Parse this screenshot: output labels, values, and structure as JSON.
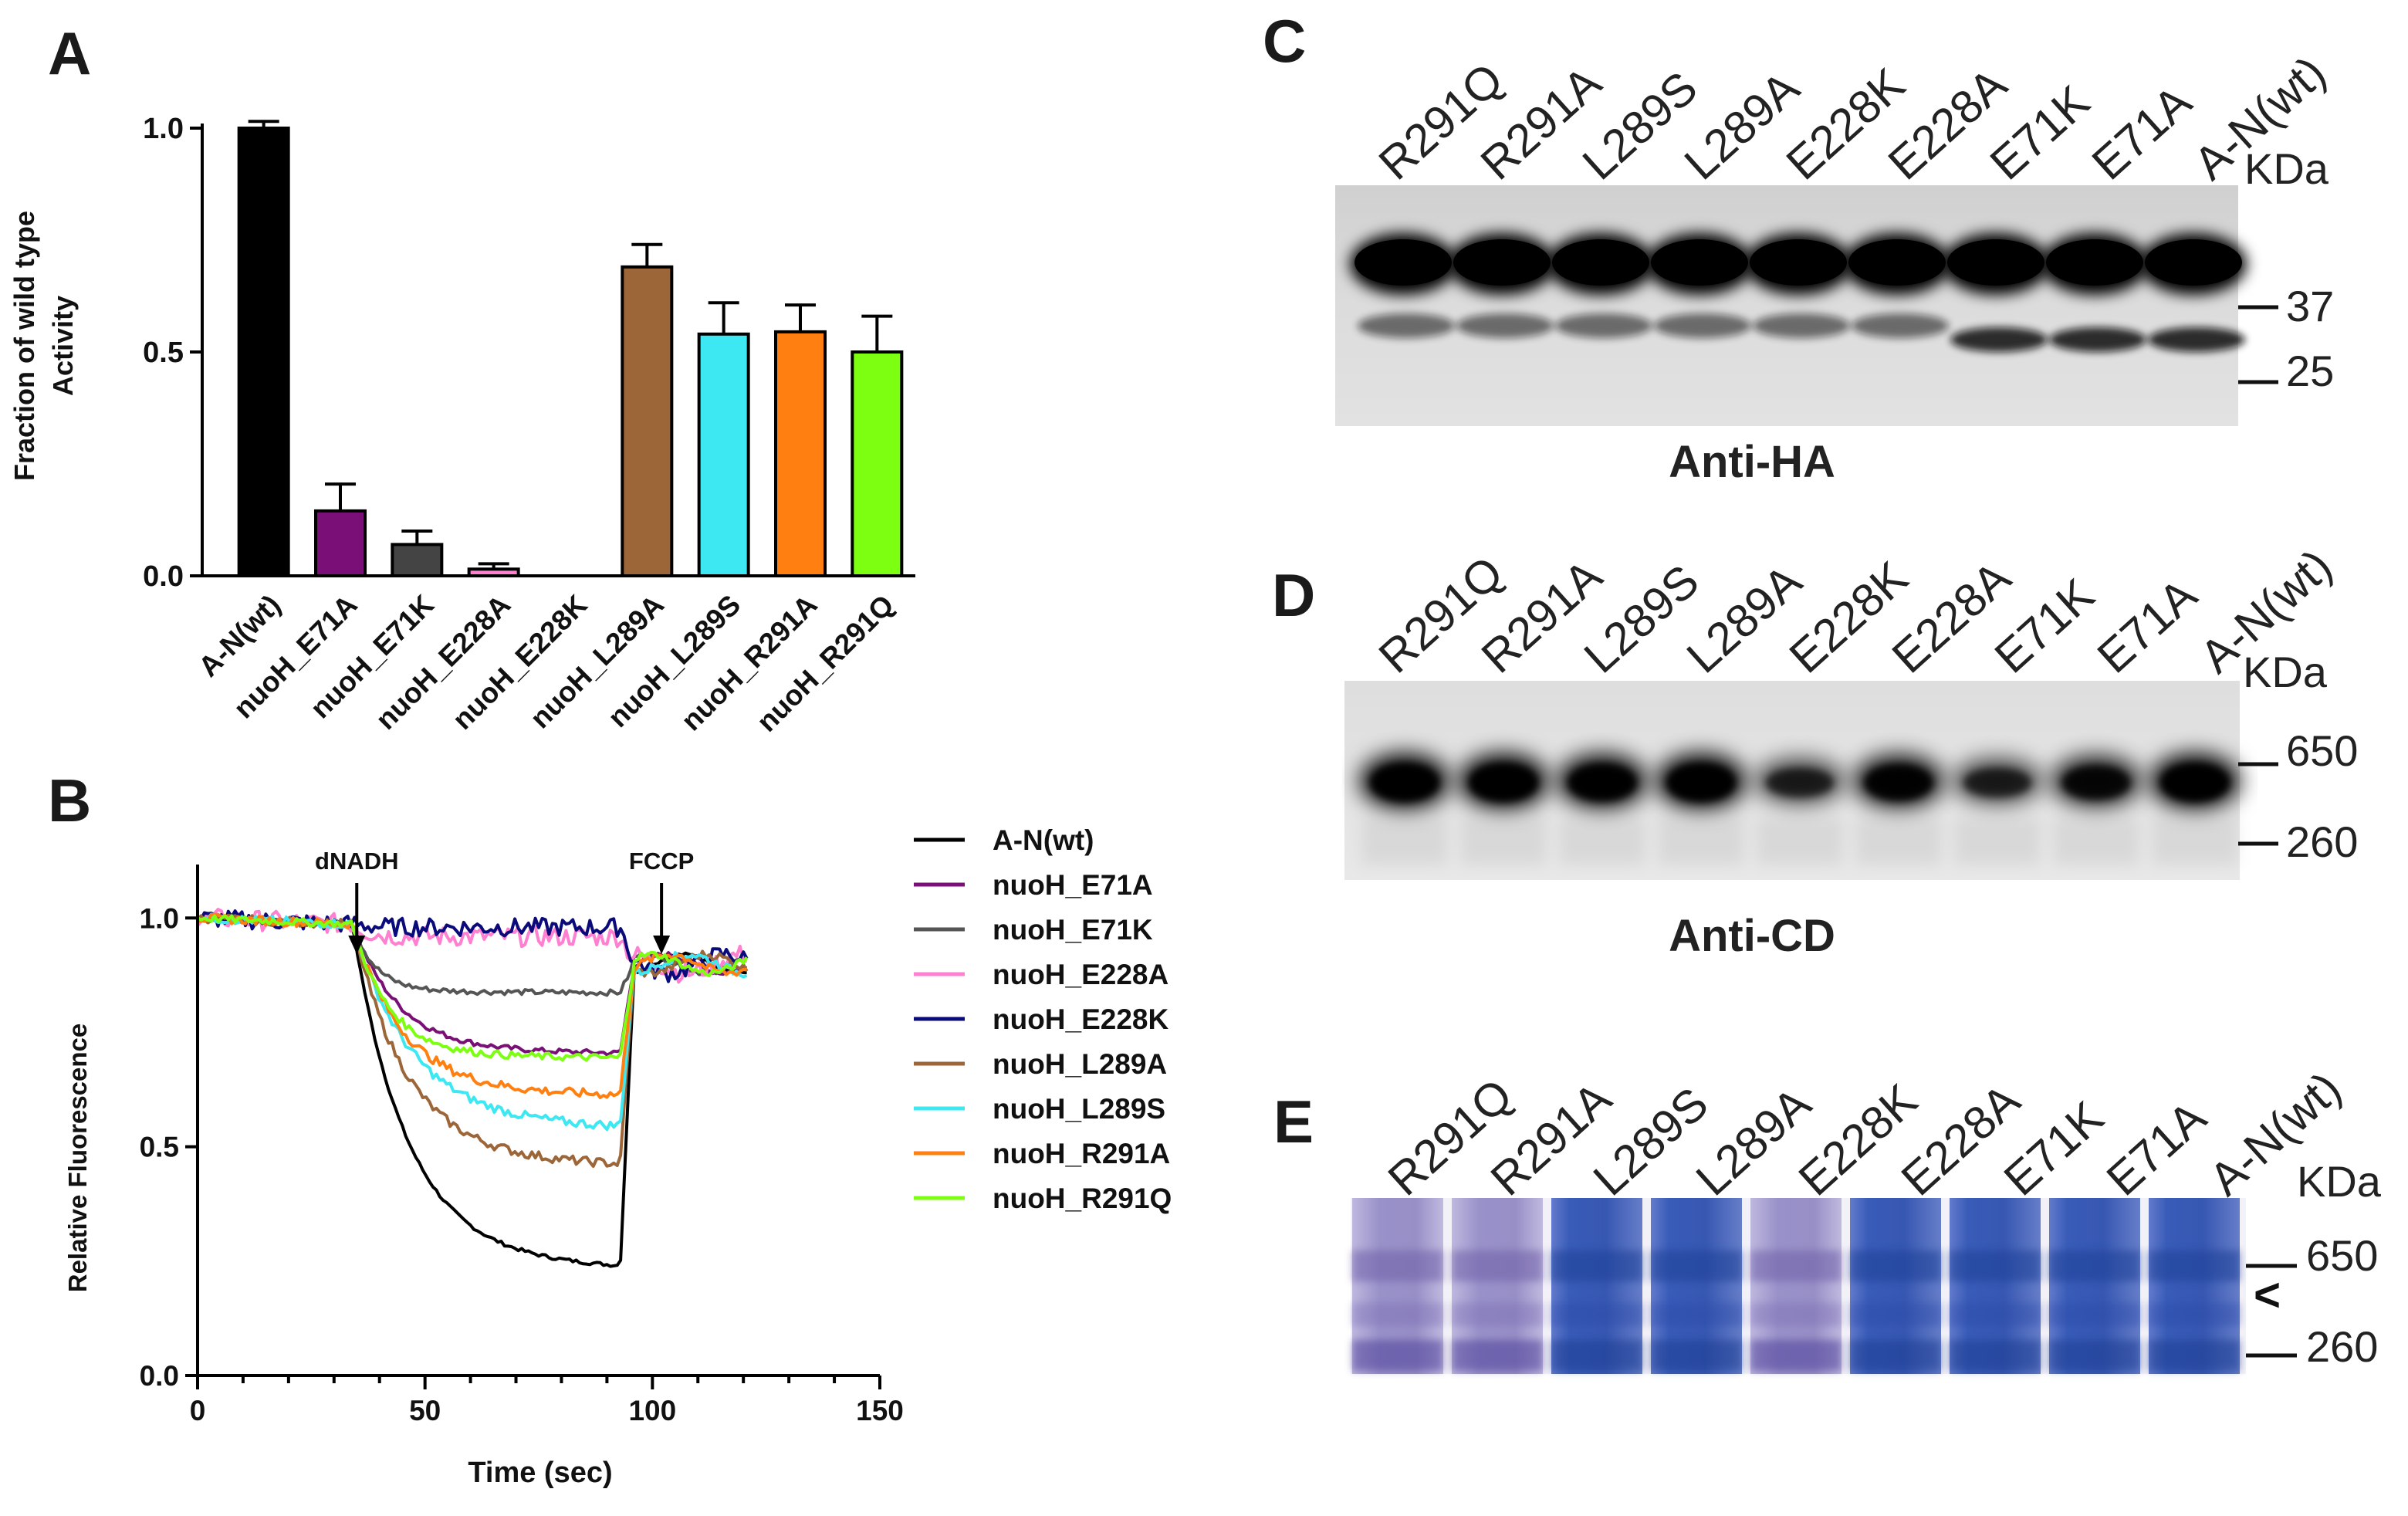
{
  "panels": {
    "a": "A",
    "b": "B",
    "c": "C",
    "d": "D",
    "e": "E"
  },
  "chart_data": [
    {
      "type": "bar",
      "panel": "A",
      "ylabel_line1": "Fraction of wild type",
      "ylabel_line2": "Activity",
      "ylim": [
        0,
        1.0
      ],
      "yticks": [
        "0.0",
        "0.5",
        "1.0"
      ],
      "categories": [
        "A-N(wt)",
        "nuoH_E71A",
        "nuoH_E71K",
        "nuoH_E228A",
        "nuoH_E228K",
        "nuoH_L289A",
        "nuoH_L289S",
        "nuoH_R291A",
        "nuoH_R291Q"
      ],
      "values": [
        1.0,
        0.145,
        0.07,
        0.015,
        0.0,
        0.69,
        0.54,
        0.545,
        0.5
      ],
      "errors": [
        0.015,
        0.06,
        0.03,
        0.012,
        0.0,
        0.05,
        0.07,
        0.06,
        0.08
      ],
      "colors": [
        "#000000",
        "#7a0f78",
        "#444444",
        "#ff7fd0",
        "#0a0a7a",
        "#9c6638",
        "#3de8f2",
        "#ff8010",
        "#7cff10"
      ]
    },
    {
      "type": "line",
      "panel": "B",
      "xlabel": "Time (sec)",
      "ylabel": "Relative Fluorescence",
      "xlim": [
        0,
        150
      ],
      "ylim": [
        0,
        1.1
      ],
      "xticks": [
        "0",
        "50",
        "100",
        "150"
      ],
      "yticks": [
        "0.0",
        "0.5",
        "1.0"
      ],
      "annotations": [
        {
          "label": "dNADH",
          "x": 35
        },
        {
          "label": "FCCP",
          "x": 102
        }
      ],
      "series": [
        {
          "name": "A-N(wt)",
          "color": "#000000",
          "plateau": 0.25,
          "tau": 12,
          "noise": 0.004
        },
        {
          "name": "nuoH_E71A",
          "color": "#7a0f78",
          "plateau": 0.71,
          "tau": 10,
          "noise": 0.006
        },
        {
          "name": "nuoH_E71K",
          "color": "#555555",
          "plateau": 0.84,
          "tau": 5,
          "noise": 0.006
        },
        {
          "name": "nuoH_E228A",
          "color": "#ff7fd0",
          "plateau": 0.96,
          "tau": 3,
          "noise": 0.022
        },
        {
          "name": "nuoH_E228K",
          "color": "#0a0a7a",
          "plateau": 0.98,
          "tau": 3,
          "noise": 0.02
        },
        {
          "name": "nuoH_L289A",
          "color": "#9c6638",
          "plateau": 0.47,
          "tau": 12,
          "noise": 0.01
        },
        {
          "name": "nuoH_L289S",
          "color": "#3de8f2",
          "plateau": 0.55,
          "tau": 13,
          "noise": 0.01
        },
        {
          "name": "nuoH_R291A",
          "color": "#ff8010",
          "plateau": 0.62,
          "tau": 11,
          "noise": 0.01
        },
        {
          "name": "nuoH_R291Q",
          "color": "#7cff10",
          "plateau": 0.7,
          "tau": 8,
          "noise": 0.008
        }
      ]
    }
  ],
  "blots": {
    "lanes": [
      "R291Q",
      "R291A",
      "L289S",
      "L289A",
      "E228K",
      "E228A",
      "E71K",
      "E71A",
      "A-N(wt)"
    ],
    "unit": "KDa",
    "c": {
      "caption": "Anti-HA",
      "markers": [
        "37",
        "25"
      ]
    },
    "d": {
      "caption": "Anti-CD",
      "markers": [
        "650",
        "260"
      ],
      "band_intensity": [
        1.0,
        1.0,
        0.95,
        1.0,
        0.55,
        0.9,
        0.55,
        0.8,
        1.0
      ]
    },
    "e": {
      "markers": [
        "650",
        "260"
      ],
      "arrow": "<"
    }
  }
}
